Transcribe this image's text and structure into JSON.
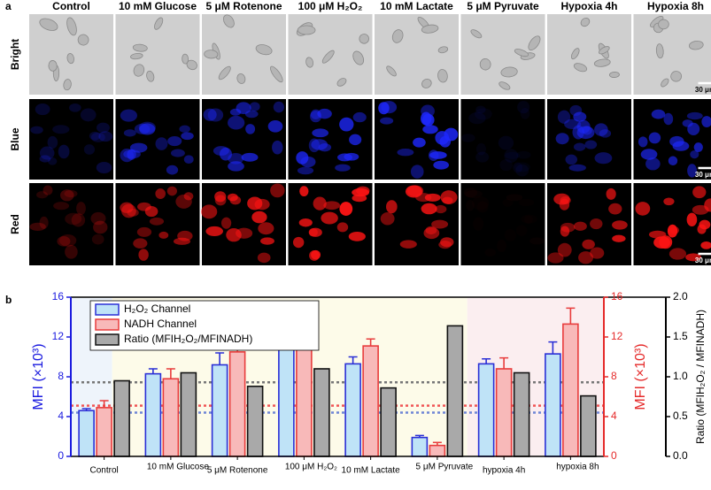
{
  "panel_a": {
    "label": "a",
    "columns": [
      "Control",
      "10 mM Glucose",
      "5 μM Rotenone",
      "100 μM H₂O₂",
      "10 mM Lactate",
      "5 μM Pyruvate",
      "Hypoxia 4h",
      "Hypoxia 8h"
    ],
    "rows": [
      "Bright",
      "Blue",
      "Red"
    ],
    "scale_bar": "30 μm"
  },
  "chart_data": {
    "type": "bar",
    "label": "b",
    "categories": [
      "Control",
      "10 mM Glucose",
      "5 μM Rotenone",
      "100 μM H₂O₂",
      "10 mM Lactate",
      "5 μM Pyruvate",
      "hypoxia 4h",
      "hypoxia 8h"
    ],
    "series": [
      {
        "name": "H₂O₂ Channel",
        "color": "#bfe3f7",
        "edge": "#2a2fd6",
        "axis": "y",
        "values": [
          4.6,
          8.3,
          9.2,
          12.3,
          9.3,
          1.9,
          9.3,
          10.3
        ],
        "errors": [
          0.2,
          0.5,
          1.2,
          0.5,
          0.7,
          0.2,
          0.5,
          1.2
        ]
      },
      {
        "name": "NADH Channel",
        "color": "#f8b9b9",
        "edge": "#e83c3c",
        "axis": "y2",
        "values": [
          4.9,
          7.8,
          10.5,
          11.2,
          11.1,
          1.1,
          8.8,
          13.3
        ],
        "errors": [
          0.7,
          1.0,
          1.4,
          0.9,
          0.7,
          0.3,
          1.1,
          1.6
        ]
      },
      {
        "name": "Ratio (MFIH₂O₂/MFINADH)",
        "color": "#a9a9a9",
        "edge": "#111111",
        "axis": "y3",
        "values": [
          0.95,
          1.05,
          0.88,
          1.1,
          0.86,
          1.64,
          1.05,
          0.76
        ]
      }
    ],
    "reference_lines": [
      {
        "axis": "y",
        "value": 4.4,
        "color": "#6f86d6"
      },
      {
        "axis": "y2",
        "value": 5.1,
        "color": "#f05555"
      },
      {
        "axis": "y3",
        "value": 0.93,
        "color": "#777777"
      }
    ],
    "ylabel": "MFI (×10³)",
    "y2label": "MFI (×10³)",
    "y3label": "Ratio (MFIH₂O₂ / MFINADH)",
    "ylim": [
      0,
      16
    ],
    "yticks": [
      0,
      4,
      8,
      12,
      16
    ],
    "y2lim": [
      0,
      16
    ],
    "y2ticks": [
      0,
      4,
      8,
      12,
      16
    ],
    "y3lim": [
      0,
      2
    ],
    "y3ticks": [
      {
        "value": 0,
        "label": "0.0"
      },
      {
        "value": 0.5,
        "label": "0.5"
      },
      {
        "value": 1,
        "label": "1.0"
      },
      {
        "value": 1.5,
        "label": "1.5"
      },
      {
        "value": 2,
        "label": "2.0"
      }
    ]
  }
}
